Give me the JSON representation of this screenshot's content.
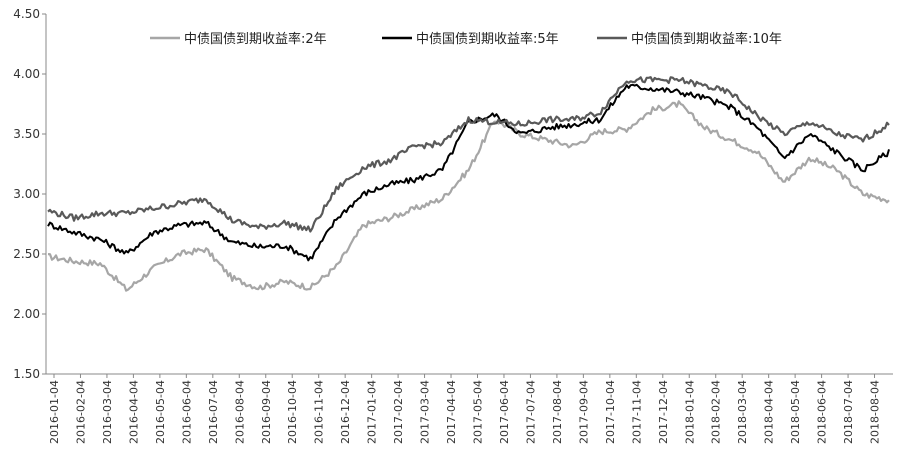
{
  "chart_data": {
    "type": "line",
    "title": "",
    "xlabel": "",
    "ylabel": "",
    "ylim": [
      1.5,
      4.5
    ],
    "y_ticks": [
      "1.50",
      "2.00",
      "2.50",
      "3.00",
      "3.50",
      "4.00",
      "4.50"
    ],
    "x_ticks": [
      "2016-01-04",
      "2016-02-04",
      "2016-03-04",
      "2016-04-04",
      "2016-05-04",
      "2016-06-04",
      "2016-07-04",
      "2016-08-04",
      "2016-09-04",
      "2016-10-04",
      "2016-11-04",
      "2016-12-04",
      "2017-01-04",
      "2017-02-04",
      "2017-03-04",
      "2017-04-04",
      "2017-05-04",
      "2017-06-04",
      "2017-07-04",
      "2017-08-04",
      "2017-09-04",
      "2017-10-04",
      "2017-11-04",
      "2017-12-04",
      "2018-01-04",
      "2018-02-04",
      "2018-03-04",
      "2018-04-04",
      "2018-05-04",
      "2018-06-04",
      "2018-07-04",
      "2018-08-04"
    ],
    "grid": false,
    "legend": "top",
    "series": [
      {
        "name": "中债国债到期收益率:2年",
        "color": "#a6a6a6",
        "values": [
          2.48,
          2.44,
          2.42,
          2.2,
          2.38,
          2.5,
          2.54,
          2.3,
          2.22,
          2.27,
          2.22,
          2.4,
          2.74,
          2.8,
          2.88,
          2.96,
          3.2,
          3.62,
          3.5,
          3.45,
          3.4,
          3.52,
          3.54,
          3.7,
          3.75,
          3.55,
          3.45,
          3.35,
          3.1,
          3.3,
          3.2,
          3.0,
          2.95
        ]
      },
      {
        "name": "中债国债到期收益率:5年",
        "color": "#000000",
        "values": [
          2.75,
          2.68,
          2.62,
          2.5,
          2.68,
          2.74,
          2.76,
          2.6,
          2.56,
          2.57,
          2.46,
          2.8,
          3.0,
          3.08,
          3.12,
          3.2,
          3.6,
          3.66,
          3.5,
          3.55,
          3.58,
          3.62,
          3.9,
          3.88,
          3.85,
          3.8,
          3.72,
          3.55,
          3.3,
          3.5,
          3.35,
          3.2,
          3.35
        ]
      },
      {
        "name": "中债国债到期收益率:10年",
        "color": "#595959",
        "values": [
          2.86,
          2.8,
          2.84,
          2.84,
          2.88,
          2.92,
          2.96,
          2.78,
          2.72,
          2.76,
          2.7,
          3.05,
          3.22,
          3.28,
          3.4,
          3.42,
          3.62,
          3.6,
          3.58,
          3.62,
          3.62,
          3.68,
          3.95,
          3.95,
          3.95,
          3.9,
          3.84,
          3.65,
          3.5,
          3.6,
          3.5,
          3.45,
          3.58
        ]
      }
    ]
  }
}
